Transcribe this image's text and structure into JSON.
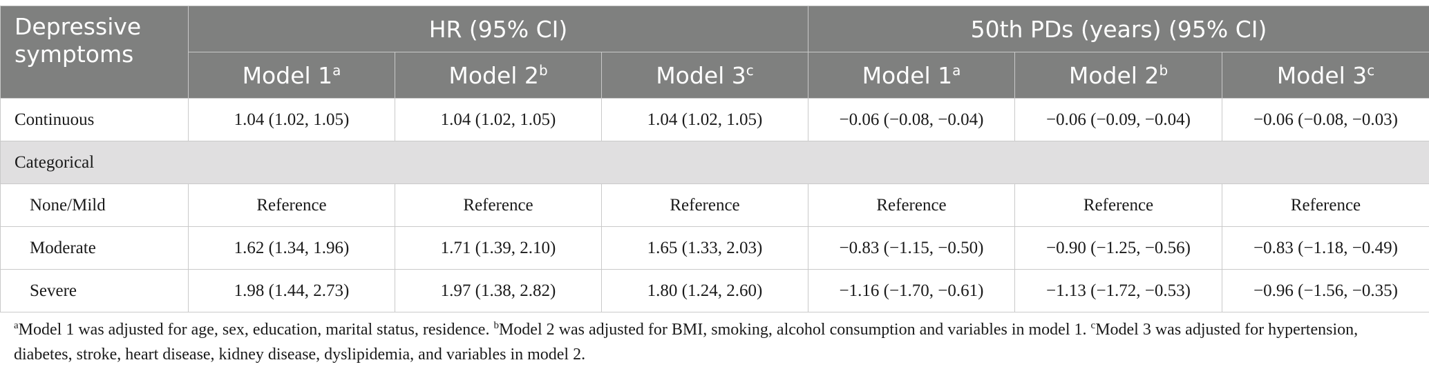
{
  "table": {
    "row_header": [
      "Depressive",
      "symptoms"
    ],
    "groups": [
      "HR (95% CI)",
      "50th PDs (years) (95% CI)"
    ],
    "models": [
      {
        "label": "Model 1",
        "sup": "a"
      },
      {
        "label": "Model 2",
        "sup": "b"
      },
      {
        "label": "Model 3",
        "sup": "c"
      },
      {
        "label": "Model 1",
        "sup": "a"
      },
      {
        "label": "Model 2",
        "sup": "b"
      },
      {
        "label": "Model 3",
        "sup": "c"
      }
    ],
    "rows": [
      {
        "label": "Continuous",
        "values": [
          "1.04 (1.02, 1.05)",
          "1.04 (1.02, 1.05)",
          "1.04 (1.02, 1.05)",
          "−0.06 (−0.08, −0.04)",
          "−0.06 (−0.09, −0.04)",
          "−0.06 (−0.08, −0.03)"
        ]
      },
      {
        "label": "Categorical"
      },
      {
        "label": "None/Mild",
        "values": [
          "Reference",
          "Reference",
          "Reference",
          "Reference",
          "Reference",
          "Reference"
        ]
      },
      {
        "label": "Moderate",
        "values": [
          "1.62 (1.34, 1.96)",
          "1.71 (1.39, 2.10)",
          "1.65 (1.33, 2.03)",
          "−0.83 (−1.15, −0.50)",
          "−0.90 (−1.25, −0.56)",
          "−0.83 (−1.18, −0.49)"
        ]
      },
      {
        "label": "Severe",
        "values": [
          "1.98 (1.44, 2.73)",
          "1.97 (1.38, 2.82)",
          "1.80 (1.24, 2.60)",
          "−1.16 (−1.70, −0.61)",
          "−1.13 (−1.72, −0.53)",
          "−0.96 (−1.56, −0.35)"
        ]
      }
    ]
  },
  "footnotes": [
    {
      "sup": "a",
      "text": "Model 1 was adjusted for age, sex, education, marital status, residence. "
    },
    {
      "sup": "b",
      "text": "Model 2 was adjusted for BMI, smoking, alcohol consumption and variables in model 1. "
    },
    {
      "sup": "c",
      "text": "Model 3 was adjusted for hypertension, diabetes, stroke, heart disease, kidney disease, dyslipidemia, and variables in model 2."
    }
  ]
}
